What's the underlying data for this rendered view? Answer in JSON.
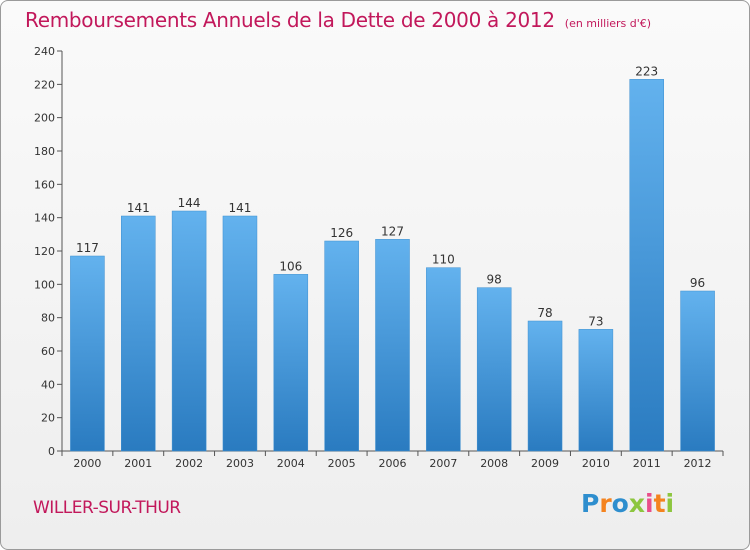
{
  "title": "Remboursements Annuels de la Dette de 2000 à 2012",
  "subtitle": "(en milliers d'€)",
  "location": "WILLER-SUR-THUR",
  "logo": {
    "letters": [
      "P",
      "r",
      "o",
      "x",
      "i",
      "t",
      "i"
    ],
    "colors": [
      "#2e8ece",
      "#f4831f",
      "#2e8ece",
      "#8dc63f",
      "#e94e8a",
      "#f4831f",
      "#8dc63f"
    ]
  },
  "colors": {
    "bar_top": "#63b2ee",
    "bar_bottom": "#2a7bc0",
    "text_accent": "#c2185b"
  },
  "chart_data": {
    "type": "bar",
    "categories": [
      "2000",
      "2001",
      "2002",
      "2003",
      "2004",
      "2005",
      "2006",
      "2007",
      "2008",
      "2009",
      "2010",
      "2011",
      "2012"
    ],
    "values": [
      117,
      141,
      144,
      141,
      106,
      126,
      127,
      110,
      98,
      78,
      73,
      223,
      96
    ],
    "title": "Remboursements Annuels de la Dette de 2000 à 2012",
    "xlabel": "",
    "ylabel": "",
    "ylim": [
      0,
      240
    ],
    "yticks": [
      0,
      20,
      40,
      60,
      80,
      100,
      120,
      140,
      160,
      180,
      200,
      220,
      240
    ],
    "grid": false,
    "legend": "none"
  }
}
